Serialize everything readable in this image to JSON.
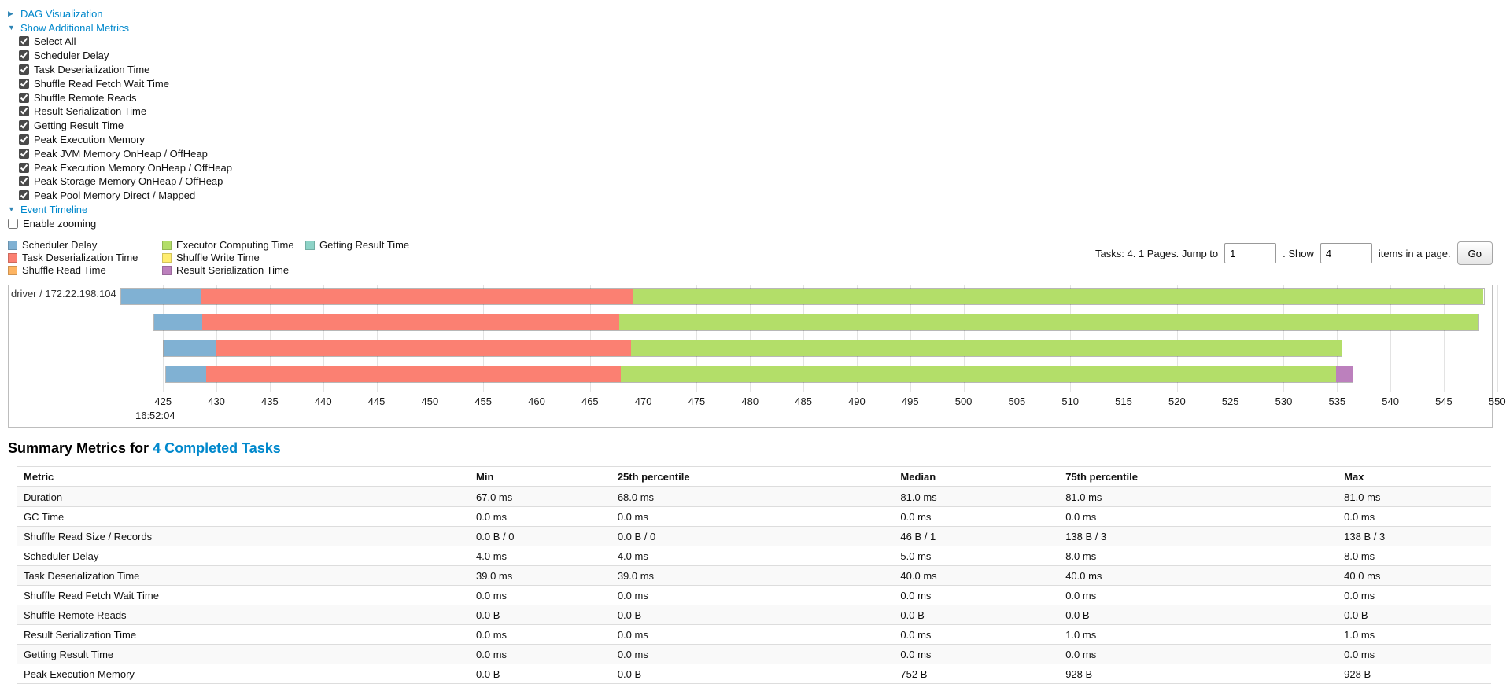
{
  "icons": {
    "arrow_collapsed": "▶",
    "arrow_expanded": "▼"
  },
  "toggles": {
    "dag_label": "DAG Visualization",
    "metrics_label": "Show Additional Metrics",
    "event_timeline_label": "Event Timeline",
    "enable_zooming_label": "Enable zooming",
    "enable_zooming_checked": false,
    "metric_checkboxes": [
      {
        "label": "Select All",
        "checked": true
      },
      {
        "label": "Scheduler Delay",
        "checked": true
      },
      {
        "label": "Task Deserialization Time",
        "checked": true
      },
      {
        "label": "Shuffle Read Fetch Wait Time",
        "checked": true
      },
      {
        "label": "Shuffle Remote Reads",
        "checked": true
      },
      {
        "label": "Result Serialization Time",
        "checked": true
      },
      {
        "label": "Getting Result Time",
        "checked": true
      },
      {
        "label": "Peak Execution Memory",
        "checked": true
      },
      {
        "label": "Peak JVM Memory OnHeap / OffHeap",
        "checked": true
      },
      {
        "label": "Peak Execution Memory OnHeap / OffHeap",
        "checked": true
      },
      {
        "label": "Peak Storage Memory OnHeap / OffHeap",
        "checked": true
      },
      {
        "label": "Peak Pool Memory Direct / Mapped",
        "checked": true
      }
    ]
  },
  "legend": {
    "columns": [
      [
        {
          "label": "Scheduler Delay",
          "color": "#80B1D3"
        },
        {
          "label": "Task Deserialization Time",
          "color": "#FB8072"
        },
        {
          "label": "Shuffle Read Time",
          "color": "#FDB462"
        }
      ],
      [
        {
          "label": "Executor Computing Time",
          "color": "#B3DE69"
        },
        {
          "label": "Shuffle Write Time",
          "color": "#FFED6F"
        },
        {
          "label": "Result Serialization Time",
          "color": "#BC80BD"
        }
      ],
      [
        {
          "label": "Getting Result Time",
          "color": "#8DD3C7"
        }
      ]
    ]
  },
  "pagination": {
    "tasks_text": "Tasks: 4. 1 Pages. Jump to",
    "jump_value": "1",
    "middle_text": ". Show",
    "show_value": "4",
    "suffix_text": "items in a page.",
    "go_label": "Go"
  },
  "timeline": {
    "group_label": "driver / 172.22.198.104",
    "axis_date_label": "16:52:04",
    "axis_date_at": 422.4,
    "t_min": 421.0,
    "t_max": 549.5,
    "ticks": [
      425,
      430,
      435,
      440,
      445,
      450,
      455,
      460,
      465,
      470,
      475,
      480,
      485,
      490,
      495,
      500,
      505,
      510,
      515,
      520,
      525,
      530,
      535,
      540,
      545,
      550
    ],
    "tasks": [
      {
        "segments": [
          {
            "metric": "Scheduler Delay",
            "from": 421.0,
            "to": 428.5
          },
          {
            "metric": "Task Deserialization Time",
            "from": 428.5,
            "to": 469.0
          },
          {
            "metric": "Executor Computing Time",
            "from": 469.0,
            "to": 548.8
          }
        ]
      },
      {
        "segments": [
          {
            "metric": "Scheduler Delay",
            "from": 424.1,
            "to": 428.6
          },
          {
            "metric": "Task Deserialization Time",
            "from": 428.6,
            "to": 467.7
          },
          {
            "metric": "Executor Computing Time",
            "from": 467.7,
            "to": 548.3
          }
        ]
      },
      {
        "segments": [
          {
            "metric": "Scheduler Delay",
            "from": 425.0,
            "to": 429.9
          },
          {
            "metric": "Task Deserialization Time",
            "from": 429.9,
            "to": 468.8
          },
          {
            "metric": "Executor Computing Time",
            "from": 468.8,
            "to": 535.5
          }
        ]
      },
      {
        "segments": [
          {
            "metric": "Scheduler Delay",
            "from": 425.2,
            "to": 429.0
          },
          {
            "metric": "Task Deserialization Time",
            "from": 429.0,
            "to": 467.9
          },
          {
            "metric": "Executor Computing Time",
            "from": 467.9,
            "to": 535.0
          },
          {
            "metric": "Result Serialization Time",
            "from": 535.0,
            "to": 536.5
          }
        ]
      }
    ]
  },
  "summary": {
    "title_prefix": "Summary Metrics for",
    "title_link": "4 Completed Tasks",
    "table": {
      "headers": [
        "Metric",
        "Min",
        "25th percentile",
        "Median",
        "75th percentile",
        "Max"
      ],
      "rows": [
        [
          "Duration",
          "67.0 ms",
          "68.0 ms",
          "81.0 ms",
          "81.0 ms",
          "81.0 ms"
        ],
        [
          "GC Time",
          "0.0 ms",
          "0.0 ms",
          "0.0 ms",
          "0.0 ms",
          "0.0 ms"
        ],
        [
          "Shuffle Read Size / Records",
          "0.0 B / 0",
          "0.0 B / 0",
          "46 B / 1",
          "138 B / 3",
          "138 B / 3"
        ],
        [
          "Scheduler Delay",
          "4.0 ms",
          "4.0 ms",
          "5.0 ms",
          "8.0 ms",
          "8.0 ms"
        ],
        [
          "Task Deserialization Time",
          "39.0 ms",
          "39.0 ms",
          "40.0 ms",
          "40.0 ms",
          "40.0 ms"
        ],
        [
          "Shuffle Read Fetch Wait Time",
          "0.0 ms",
          "0.0 ms",
          "0.0 ms",
          "0.0 ms",
          "0.0 ms"
        ],
        [
          "Shuffle Remote Reads",
          "0.0 B",
          "0.0 B",
          "0.0 B",
          "0.0 B",
          "0.0 B"
        ],
        [
          "Result Serialization Time",
          "0.0 ms",
          "0.0 ms",
          "0.0 ms",
          "1.0 ms",
          "1.0 ms"
        ],
        [
          "Getting Result Time",
          "0.0 ms",
          "0.0 ms",
          "0.0 ms",
          "0.0 ms",
          "0.0 ms"
        ],
        [
          "Peak Execution Memory",
          "0.0 B",
          "0.0 B",
          "752 B",
          "928 B",
          "928 B"
        ]
      ]
    }
  }
}
